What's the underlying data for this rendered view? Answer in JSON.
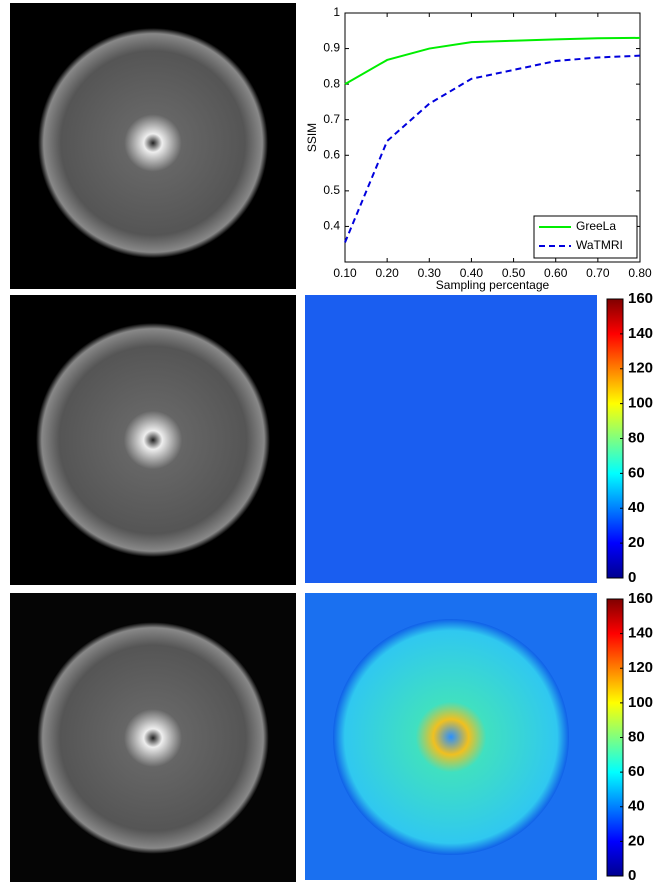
{
  "chart_data": [
    {
      "type": "line",
      "xlabel": "Sampling percentage",
      "ylabel": "SSIM",
      "x": [
        0.1,
        0.2,
        0.3,
        0.4,
        0.5,
        0.6,
        0.7,
        0.8
      ],
      "series": [
        {
          "name": "GreeLa",
          "color": "#00ee00",
          "dash": "solid",
          "values": [
            0.8,
            0.868,
            0.9,
            0.918,
            0.922,
            0.926,
            0.929,
            0.93
          ]
        },
        {
          "name": "WaTMRI",
          "color": "#0000dd",
          "dash": "dashed",
          "values": [
            0.355,
            0.64,
            0.745,
            0.815,
            0.84,
            0.865,
            0.875,
            0.88
          ]
        }
      ],
      "xlim": [
        0.1,
        0.8
      ],
      "xticks": [
        {
          "value": 0.1,
          "label": "0.10"
        },
        {
          "value": 0.2,
          "label": "0.20"
        },
        {
          "value": 0.3,
          "label": "0.30"
        },
        {
          "value": 0.4,
          "label": "0.40"
        },
        {
          "value": 0.5,
          "label": "0.50"
        },
        {
          "value": 0.6,
          "label": "0.60"
        },
        {
          "value": 0.7,
          "label": "0.70"
        },
        {
          "value": 0.8,
          "label": "0.80"
        }
      ],
      "ylim": [
        0.3,
        1
      ],
      "yticks": [
        0.4,
        0.5,
        0.6,
        0.7,
        0.8,
        0.9,
        1
      ],
      "legend": "lower right"
    },
    {
      "type": "colorbar",
      "colormap": "jet",
      "ylim": [
        0,
        160
      ],
      "yticks": [
        0,
        20,
        40,
        60,
        80,
        100,
        120,
        140,
        160
      ]
    },
    {
      "type": "colorbar",
      "colormap": "jet",
      "ylim": [
        0,
        160
      ],
      "yticks": [
        0,
        20,
        40,
        60,
        80,
        100,
        120,
        140,
        160
      ]
    }
  ]
}
